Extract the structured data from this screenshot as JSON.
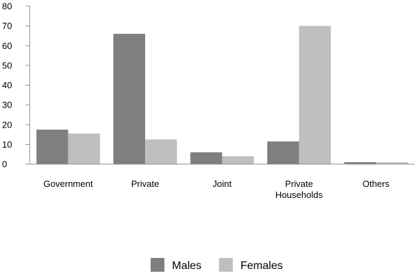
{
  "chart_data": {
    "type": "bar",
    "categories": [
      [
        "Government"
      ],
      [
        "Private"
      ],
      [
        "Joint"
      ],
      [
        "Private",
        "Households"
      ],
      [
        "Others"
      ]
    ],
    "series": [
      {
        "name": "Males",
        "color": "#7f7f7f",
        "values": [
          17.5,
          66,
          6,
          11.5,
          1
        ]
      },
      {
        "name": "Females",
        "color": "#bfbfbf",
        "values": [
          15.5,
          12.5,
          4,
          70,
          1
        ]
      }
    ],
    "ylim": [
      0,
      80
    ],
    "y_ticks": [
      0,
      10,
      20,
      30,
      40,
      50,
      60,
      70,
      80
    ],
    "grid": false,
    "legend_position": "bottom"
  }
}
